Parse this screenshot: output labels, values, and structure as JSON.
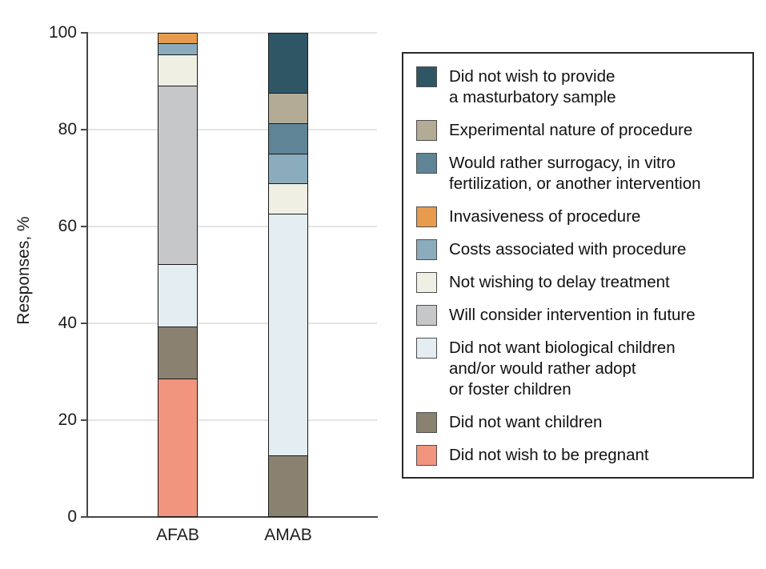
{
  "chart_data": {
    "type": "bar",
    "subtype": "stacked-vertical",
    "title": "",
    "xlabel": "",
    "ylabel": "Responses, %",
    "ylim": [
      0,
      100
    ],
    "yticks": [
      0,
      20,
      40,
      60,
      80,
      100
    ],
    "grid": "horizontal",
    "legend_position": "right",
    "categories": [
      "AFAB",
      "AMAB"
    ],
    "series": [
      {
        "name": "Did not wish to provide a masturbatory sample",
        "label_lines": [
          "Did not wish to provide",
          "a masturbatory sample"
        ],
        "color": "#2f5665",
        "values": [
          0,
          12.5
        ]
      },
      {
        "name": "Experimental nature of procedure",
        "label_lines": [
          "Experimental nature of procedure"
        ],
        "color": "#b4ab97",
        "values": [
          0,
          6.25
        ]
      },
      {
        "name": "Would rather surrogacy, in vitro fertilization, or another intervention",
        "label_lines": [
          "Would rather surrogacy, in vitro",
          "fertilization, or another intervention"
        ],
        "color": "#5e8496",
        "values": [
          0,
          6.25
        ]
      },
      {
        "name": "Invasiveness of procedure",
        "label_lines": [
          "Invasiveness of procedure"
        ],
        "color": "#e69c4c",
        "values": [
          2.2,
          0
        ]
      },
      {
        "name": "Costs associated with procedure",
        "label_lines": [
          "Costs associated with procedure"
        ],
        "color": "#8aacbc",
        "values": [
          2.2,
          6.25
        ]
      },
      {
        "name": "Not wishing to delay treatment",
        "label_lines": [
          "Not wishing to delay treatment"
        ],
        "color": "#f0efe3",
        "values": [
          6.5,
          6.25
        ]
      },
      {
        "name": "Will consider intervention in future",
        "label_lines": [
          "Will consider intervention in future"
        ],
        "color": "#c6c7c9",
        "values": [
          37,
          0
        ]
      },
      {
        "name": "Did not want biological children and/or would rather adopt or foster children",
        "label_lines": [
          "Did not want biological children",
          "and/or would rather adopt",
          "or foster children"
        ],
        "color": "#e3edf2",
        "values": [
          13,
          50
        ]
      },
      {
        "name": "Did not want children",
        "label_lines": [
          "Did not want children"
        ],
        "color": "#8a8171",
        "values": [
          10.9,
          12.5
        ]
      },
      {
        "name": "Did not wish to be pregnant",
        "label_lines": [
          "Did not wish to be pregnant"
        ],
        "color": "#f1957f",
        "values": [
          28.3,
          0
        ]
      }
    ]
  },
  "style": {
    "grid_color": "#e4e4e4",
    "axis_color": "#47474a",
    "segment_border_color": "#1a1a1a",
    "legend_border_color": "#2a2a2a",
    "text_color": "#1c1c1c"
  }
}
